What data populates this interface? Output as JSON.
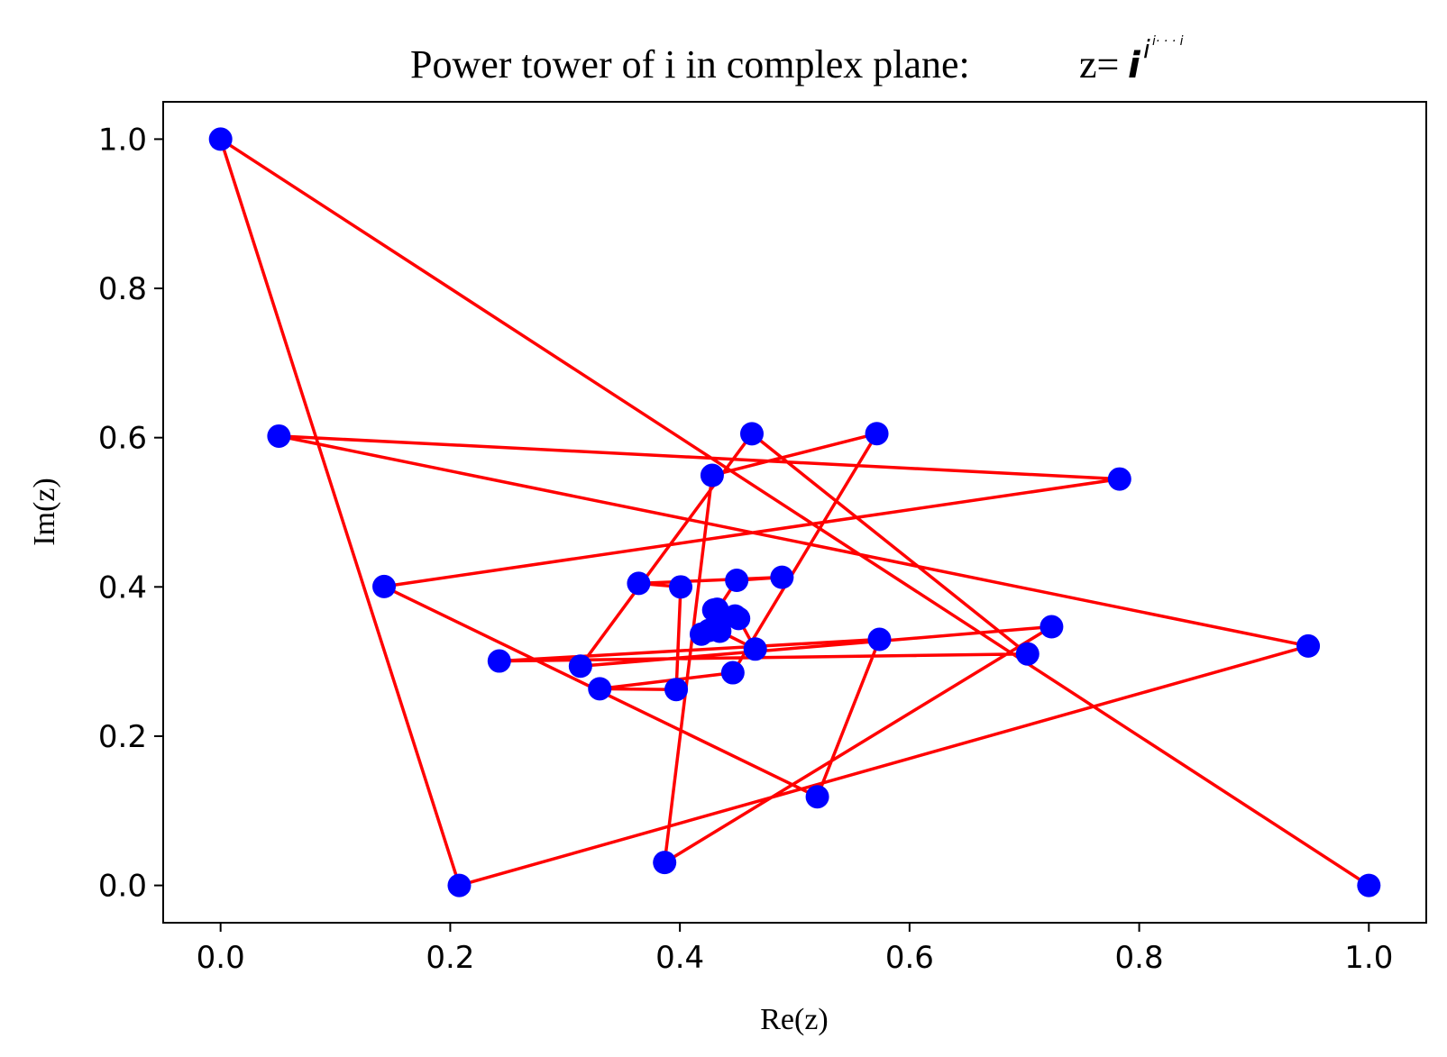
{
  "chart_data": {
    "type": "line",
    "title_prefix": "Power tower of i in complex plane:",
    "title_formula": {
      "lhs": "z=",
      "base": "i",
      "exponent": "i",
      "exponent_tail": "i· · · i"
    },
    "xlabel": "Re(z)",
    "ylabel": "Im(z)",
    "xlim": [
      -0.05,
      1.05
    ],
    "ylim": [
      -0.05,
      1.05
    ],
    "xticks": [
      0.0,
      0.2,
      0.4,
      0.6,
      0.8,
      1.0
    ],
    "yticks": [
      0.0,
      0.2,
      0.4,
      0.6,
      0.8,
      1.0
    ],
    "xtick_labels": [
      "0.0",
      "0.2",
      "0.4",
      "0.6",
      "0.8",
      "1.0"
    ],
    "ytick_labels": [
      "0.0",
      "0.2",
      "0.4",
      "0.6",
      "0.8",
      "1.0"
    ],
    "grid": false,
    "line_color": "#ff0000",
    "marker_color": "#0000ff",
    "series": [
      {
        "x": [
          1.0,
          0.0,
          0.2079,
          0.9472,
          0.0508,
          0.7829,
          0.1424,
          0.5197,
          0.5738,
          0.2427,
          0.7028,
          0.4627,
          0.3134,
          0.7237,
          0.3867,
          0.4281,
          0.5715,
          0.4461,
          0.3302,
          0.3968,
          0.4007,
          0.3641,
          0.4889,
          0.4495,
          0.4187,
          0.4511,
          0.4656,
          0.4347,
          0.4253,
          0.448,
          0.4295,
          0.4351,
          0.4324,
          0.4369,
          0.4355,
          0.4361
        ],
        "y": [
          0.0,
          1.0,
          0.0,
          0.3208,
          0.6021,
          0.5446,
          0.4005,
          0.1188,
          0.3297,
          0.3007,
          0.3102,
          0.6052,
          0.2938,
          0.3466,
          0.0307,
          0.5495,
          0.6054,
          0.285,
          0.2635,
          0.2625,
          0.4,
          0.4047,
          0.4129,
          0.4088,
          0.3367,
          0.3577,
          0.3167,
          0.3406,
          0.3417,
          0.361,
          0.369,
          0.3576,
          0.37,
          0.3561,
          0.3626,
          0.3605
        ]
      }
    ]
  }
}
